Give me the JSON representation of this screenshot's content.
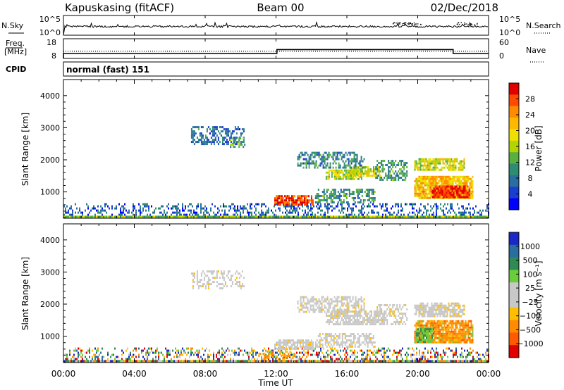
{
  "header": {
    "station": "Kapuskasing (fitACF)",
    "beam": "Beam 00",
    "date": "02/Dec/2018"
  },
  "nsky_panel": {
    "left_label": "N.Sky",
    "left_ticks": [
      "10^5",
      "10^0"
    ],
    "right_label": "N.Search",
    "right_ticks": [
      "10^5",
      "10^0"
    ],
    "right_legend_line": "dotted"
  },
  "freq_panel": {
    "left_label_1": "Freq.",
    "left_label_2": "[MHz]",
    "left_ticks": [
      "18",
      "8"
    ],
    "right_label": "Nave",
    "right_ticks": [
      "60",
      "0"
    ],
    "right_legend_line": "dotted"
  },
  "cpid_panel": {
    "label": "CPID",
    "mode": "normal (fast) 151"
  },
  "x_axis": {
    "label": "Time UT",
    "ticks": [
      "00:00",
      "04:00",
      "08:00",
      "12:00",
      "16:00",
      "20:00",
      "00:00"
    ]
  },
  "power_colorbar": {
    "label": "Power [dB]",
    "ticks": [
      "28",
      "24",
      "20",
      "16",
      "12",
      "8",
      "4"
    ],
    "colors": [
      "#e00000",
      "#ff4a00",
      "#ff8c00",
      "#ffb800",
      "#f0e000",
      "#b4d400",
      "#58b040",
      "#2e8c72",
      "#2a6ea0",
      "#1a3fd0",
      "#0000ff"
    ]
  },
  "velocity_colorbar": {
    "label": "Velocity [m s⁻¹]",
    "ticks": [
      "1000",
      "500",
      "100",
      "25",
      "−25",
      "−100",
      "−500",
      "−1000"
    ],
    "colors": [
      "#1a28c8",
      "#2a6ea0",
      "#2f8a55",
      "#6acd3c",
      "#c8c8c8",
      "#c8c8c8",
      "#ffbe00",
      "#ff8c00",
      "#ff5a00",
      "#e00000"
    ]
  },
  "chart_data": [
    {
      "type": "heatmap",
      "name": "power",
      "ylabel": "Slant Range [km]",
      "xlabel": "Time UT",
      "y_ticks": [
        "1000",
        "2000",
        "3000",
        "4000"
      ],
      "xlim_hours": [
        0,
        24
      ],
      "ylim_km": [
        180,
        4500
      ],
      "colorbar_range_db": [
        0,
        31
      ],
      "echo_regions": [
        {
          "t0": 0,
          "t1": 24,
          "r0": 200,
          "r1": 650,
          "value": 6,
          "density": 0.35
        },
        {
          "t0": 7.2,
          "t1": 10.2,
          "r0": 2500,
          "r1": 3050,
          "value": 7,
          "density": 0.5
        },
        {
          "t0": 9.4,
          "t1": 10.2,
          "r0": 2400,
          "r1": 2700,
          "value": 12,
          "density": 0.5
        },
        {
          "t0": 11.9,
          "t1": 14.1,
          "r0": 600,
          "r1": 900,
          "value": 27,
          "density": 0.85
        },
        {
          "t0": 14.2,
          "t1": 17.6,
          "r0": 650,
          "r1": 1100,
          "value": 10,
          "density": 0.55
        },
        {
          "t0": 14.8,
          "t1": 16.8,
          "r0": 1400,
          "r1": 1700,
          "value": 16,
          "density": 0.75
        },
        {
          "t0": 16.2,
          "t1": 18.0,
          "r0": 1500,
          "r1": 1800,
          "value": 17,
          "density": 0.75
        },
        {
          "t0": 13.2,
          "t1": 17.0,
          "r0": 1750,
          "r1": 2250,
          "value": 9,
          "density": 0.55
        },
        {
          "t0": 17.6,
          "t1": 19.4,
          "r0": 1400,
          "r1": 2000,
          "value": 10,
          "density": 0.5
        },
        {
          "t0": 19.8,
          "t1": 22.6,
          "r0": 1700,
          "r1": 2050,
          "value": 17,
          "density": 0.8
        },
        {
          "t0": 19.8,
          "t1": 23.1,
          "r0": 780,
          "r1": 1500,
          "value": 21,
          "density": 0.9
        },
        {
          "t0": 20.8,
          "t1": 22.9,
          "r0": 850,
          "r1": 1200,
          "value": 29,
          "density": 0.9
        }
      ]
    },
    {
      "type": "heatmap",
      "name": "velocity",
      "ylabel": "Slant Range [km]",
      "xlabel": "Time UT",
      "y_ticks": [
        "1000",
        "2000",
        "3000",
        "4000"
      ],
      "xlim_hours": [
        0,
        24
      ],
      "ylim_km": [
        180,
        4500
      ],
      "echo_regions": [
        {
          "t0": 0,
          "t1": 24,
          "r0": 200,
          "r1": 650,
          "category": "mixed",
          "density": 0.35
        },
        {
          "t0": 7.2,
          "t1": 10.2,
          "r0": 2500,
          "r1": 3050,
          "category": "ground",
          "density": 0.35
        },
        {
          "t0": 11.9,
          "t1": 14.1,
          "r0": 600,
          "r1": 900,
          "category": "ground",
          "density": 0.8
        },
        {
          "t0": 11.0,
          "t1": 13.0,
          "r0": 300,
          "r1": 550,
          "category": "negative",
          "density": 0.4
        },
        {
          "t0": 14.2,
          "t1": 17.6,
          "r0": 650,
          "r1": 1100,
          "category": "ground",
          "density": 0.55
        },
        {
          "t0": 14.8,
          "t1": 18.0,
          "r0": 1400,
          "r1": 1800,
          "category": "ground",
          "density": 0.75
        },
        {
          "t0": 13.2,
          "t1": 17.0,
          "r0": 1750,
          "r1": 2250,
          "category": "ground",
          "density": 0.55
        },
        {
          "t0": 17.6,
          "t1": 19.4,
          "r0": 1400,
          "r1": 2000,
          "category": "ground",
          "density": 0.5
        },
        {
          "t0": 19.8,
          "t1": 22.6,
          "r0": 1650,
          "r1": 2050,
          "category": "ground",
          "density": 0.8
        },
        {
          "t0": 19.8,
          "t1": 23.1,
          "r0": 780,
          "r1": 1500,
          "category": "negative",
          "density": 0.9
        },
        {
          "t0": 19.9,
          "t1": 20.9,
          "r0": 850,
          "r1": 1250,
          "category": "positive",
          "density": 0.8
        }
      ]
    },
    {
      "type": "line",
      "name": "n_sky_n_search",
      "xlim_hours": [
        0,
        24
      ],
      "ylim_log10": [
        0,
        5
      ],
      "n_sky_level_log10": 2.2,
      "n_search_points_hours": [
        18.8,
        19.1,
        19.4,
        19.7,
        20.0,
        22.4,
        22.8,
        23.2
      ]
    },
    {
      "type": "line",
      "name": "freq_nave",
      "xlim_hours": [
        0,
        24
      ],
      "freq_mhz_segments": [
        {
          "t0": 0,
          "t1": 12.05,
          "value": 10.5
        },
        {
          "t0": 12.05,
          "t1": 22.0,
          "value": 12.5
        },
        {
          "t0": 22.0,
          "t1": 24,
          "value": 10.5
        }
      ],
      "freq_ylim": [
        8,
        18
      ],
      "nave_level": 22,
      "nave_ylim": [
        0,
        60
      ]
    }
  ]
}
